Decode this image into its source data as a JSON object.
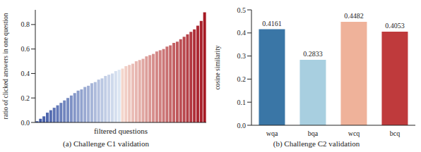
{
  "chart_data": [
    {
      "type": "bar",
      "title": "(a) Challenge C1 validation",
      "x_label": "filtered questions",
      "y_label": "ratio of clicked answers in one question",
      "categories": [
        null,
        null,
        null,
        null,
        null,
        null,
        null,
        null,
        null,
        null,
        null,
        null,
        null,
        null,
        null,
        null,
        null,
        null,
        null,
        null,
        null,
        null,
        null,
        null,
        null,
        null,
        null,
        null,
        null,
        null,
        null,
        null,
        null,
        null,
        null,
        null,
        null,
        null,
        null,
        null,
        null,
        null,
        null,
        null,
        null,
        null,
        null,
        null,
        null,
        null
      ],
      "values": [
        0.01,
        0.03,
        0.05,
        0.08,
        0.1,
        0.12,
        0.14,
        0.16,
        0.18,
        0.2,
        0.22,
        0.24,
        0.26,
        0.27,
        0.29,
        0.3,
        0.32,
        0.33,
        0.35,
        0.36,
        0.38,
        0.39,
        0.4,
        0.42,
        0.43,
        0.44,
        0.46,
        0.47,
        0.48,
        0.5,
        0.51,
        0.52,
        0.54,
        0.55,
        0.56,
        0.58,
        0.59,
        0.6,
        0.62,
        0.63,
        0.65,
        0.66,
        0.68,
        0.7,
        0.72,
        0.74,
        0.76,
        0.79,
        0.83,
        0.9
      ],
      "colors": [
        "#3b55a4",
        "#425ba7",
        "#4861ab",
        "#4f67ae",
        "#566db1",
        "#5d73b4",
        "#6379b8",
        "#6a7fbb",
        "#7185be",
        "#778bc1",
        "#7e91c5",
        "#8597c8",
        "#8b9dcb",
        "#92a3ce",
        "#99a9d2",
        "#a0afd5",
        "#a6b5d8",
        "#adbbdb",
        "#b4c1df",
        "#bac7e2",
        "#c1cde5",
        "#c8d3e8",
        "#ced9ec",
        "#d5dfef",
        "#dce6f2",
        "#f4d6cc",
        "#f1cec5",
        "#edc6be",
        "#eabeb7",
        "#e7b6b0",
        "#e4afa9",
        "#e0a7a2",
        "#dd9f9b",
        "#da9794",
        "#d68f8d",
        "#d38786",
        "#d07f7f",
        "#cc7778",
        "#c96f71",
        "#c6686a",
        "#c36063",
        "#bf585c",
        "#bc5055",
        "#b9484e",
        "#b54047",
        "#b23840",
        "#af3039",
        "#ab2832",
        "#a8212b",
        "#a51923"
      ],
      "ylim": [
        0,
        0.92
      ],
      "yticks": [
        {
          "value": 0,
          "label": "0.0"
        },
        0.2,
        0.4,
        0.6,
        0.8
      ],
      "tick_labels": "y"
    },
    {
      "type": "bar",
      "title": "(b) Challenge C2 validation",
      "y_label": "cosine similarity",
      "categories": [
        "wqa",
        "bqa",
        "wcq",
        "bcq"
      ],
      "values": [
        0.4161,
        0.2833,
        0.4482,
        0.4053
      ],
      "colors": [
        "#3a76a6",
        "#a8cfe0",
        "#efb29a",
        "#bf3a3c"
      ],
      "ylim": [
        0,
        0.5
      ],
      "yticks": [
        {
          "value": 0,
          "label": "0.0"
        },
        0.1,
        0.2,
        0.3,
        0.4,
        0.5
      ],
      "data_labels": true
    }
  ]
}
